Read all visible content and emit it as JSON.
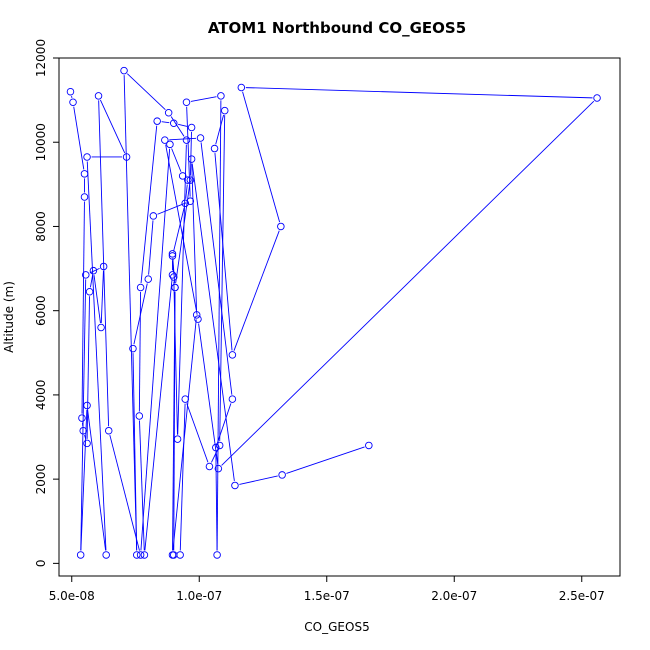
{
  "chart_data": {
    "type": "line",
    "title": "ATOM1 Northbound CO_GEOS5",
    "xlabel": "CO_GEOS5",
    "ylabel": "Altitude (m)",
    "xlim": [
      4.5e-08,
      2.65e-07
    ],
    "ylim": [
      -300,
      12000
    ],
    "x_ticks": [
      5e-08,
      1e-07,
      1.5e-07,
      2e-07,
      2.5e-07
    ],
    "x_tick_labels": [
      "5.0e-08",
      "1.0e-07",
      "1.5e-07",
      "2.0e-07",
      "2.5e-07"
    ],
    "y_ticks": [
      0,
      2000,
      4000,
      6000,
      8000,
      10000,
      12000
    ],
    "y_tick_labels": [
      "0",
      "2000",
      "4000",
      "6000",
      "8000",
      "10000",
      "12000"
    ],
    "grid": false,
    "legend": "none",
    "series": [
      {
        "color": "#0000ff",
        "marker": "open-circle",
        "x": [
          4.95e-08,
          5.05e-08,
          5.5e-08,
          5.5e-08,
          5.4e-08,
          5.45e-08,
          5.6e-08,
          5.7e-08,
          5.85e-08,
          6.15e-08,
          6.25e-08,
          5.55e-08,
          5.35e-08,
          5.6e-08,
          6.35e-08,
          5.6e-08,
          7.15e-08,
          6.05e-08,
          6.45e-08,
          7.7e-08,
          8.85e-08,
          9.35e-08,
          9.55e-08,
          9.45e-08,
          8.95e-08,
          8.95e-08,
          7.85e-08,
          7.65e-08,
          7.7e-08,
          8.35e-08,
          9e-08,
          9.7e-08,
          9.65e-08,
          9.05e-08,
          9e-08,
          9.25e-08,
          9.45e-08,
          1.04e-07,
          1.08e-07,
          1.1e-07,
          1.06e-07,
          1.13e-07,
          1.32e-07,
          1.165e-07,
          2.56e-07,
          1.075e-07,
          9.95e-08,
          8.65e-08,
          1.005e-07,
          1.13e-07,
          1.065e-07,
          1.07e-07,
          1.085e-07,
          9.5e-08,
          9.65e-08,
          8.2e-08,
          8e-08,
          7.4e-08,
          7.55e-08,
          7.05e-08,
          8.8e-08,
          9.5e-08,
          9.15e-08,
          9e-08,
          8.95e-08,
          9.05e-08,
          8.95e-08,
          9.9e-08,
          9.7e-08,
          1.14e-07,
          1.325e-07,
          1.665e-07
        ],
        "y": [
          11200,
          10950,
          9250,
          8700,
          3450,
          3150,
          2850,
          6450,
          6950,
          5600,
          7050,
          6850,
          200,
          3750,
          200,
          9650,
          9650,
          11100,
          3150,
          200,
          9950,
          9200,
          9100,
          8550,
          7300,
          6850,
          200,
          3500,
          6550,
          10500,
          10450,
          10350,
          9100,
          6550,
          200,
          200,
          3900,
          2300,
          2800,
          10750,
          9850,
          4950,
          8000,
          11300,
          11050,
          2250,
          5800,
          10050,
          10100,
          3900,
          2750,
          200,
          11100,
          10950,
          8600,
          8250,
          6750,
          5100,
          200,
          11700,
          10700,
          10050,
          2950,
          6800,
          7350,
          6550,
          200,
          5900,
          9600,
          1850,
          2100,
          2800
        ]
      }
    ]
  }
}
